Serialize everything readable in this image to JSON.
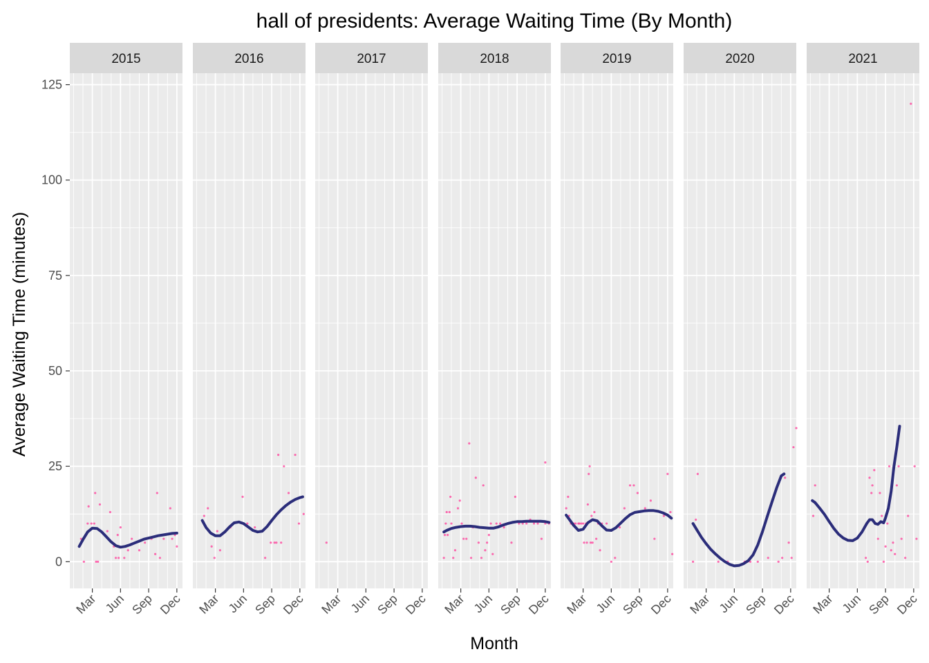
{
  "chart_data": {
    "type": "scatter",
    "title": "hall of presidents: Average Waiting Time (By Month)",
    "xlabel": "Month",
    "ylabel": "Average Waiting Time (minutes)",
    "ylim": [
      -7,
      128
    ],
    "xlim": [
      0.6,
      12.6
    ],
    "y_ticks": [
      0,
      25,
      50,
      75,
      100,
      125
    ],
    "y_tick_labels": [
      "0",
      "25",
      "50",
      "75",
      "100",
      "125"
    ],
    "x_ticks": [
      3,
      6,
      9,
      12
    ],
    "x_tick_labels": [
      "Mar",
      "Jun",
      "Sep",
      "Dec"
    ],
    "grid": true,
    "colors": {
      "panel_bg": "#ebebeb",
      "strip_bg": "#d9d9d9",
      "grid": "#ffffff",
      "points": "#ff3e9a",
      "smooth_line": "#2b2d7a"
    },
    "panels": [
      {
        "label": "2015",
        "points": [
          [
            1.8,
            6
          ],
          [
            2.1,
            0
          ],
          [
            2.5,
            10
          ],
          [
            2.6,
            14.5
          ],
          [
            2.9,
            10
          ],
          [
            3.2,
            10
          ],
          [
            3.3,
            18
          ],
          [
            3.4,
            0
          ],
          [
            3.6,
            0
          ],
          [
            3.8,
            15
          ],
          [
            4.3,
            7
          ],
          [
            4.6,
            8
          ],
          [
            4.9,
            13
          ],
          [
            5.3,
            4
          ],
          [
            5.5,
            1
          ],
          [
            5.7,
            7
          ],
          [
            5.8,
            1
          ],
          [
            6,
            9
          ],
          [
            6.4,
            1
          ],
          [
            6.8,
            3
          ],
          [
            7.2,
            6
          ],
          [
            8,
            3
          ],
          [
            8.6,
            5
          ],
          [
            9.3,
            6
          ],
          [
            9.7,
            2
          ],
          [
            9.9,
            18
          ],
          [
            10.2,
            1
          ],
          [
            10.6,
            6
          ],
          [
            11.3,
            14
          ],
          [
            11.5,
            6
          ],
          [
            11.8,
            7
          ],
          [
            12,
            4
          ]
        ],
        "smooth": [
          [
            1.6,
            4
          ],
          [
            2,
            5.8
          ],
          [
            2.5,
            7.8
          ],
          [
            3,
            8.8
          ],
          [
            3.5,
            8.7
          ],
          [
            4,
            7.8
          ],
          [
            4.5,
            6.5
          ],
          [
            5,
            5.2
          ],
          [
            5.5,
            4.2
          ],
          [
            6,
            3.8
          ],
          [
            6.5,
            4
          ],
          [
            7,
            4.4
          ],
          [
            7.5,
            4.9
          ],
          [
            8,
            5.4
          ],
          [
            8.5,
            5.9
          ],
          [
            9,
            6.2
          ],
          [
            9.5,
            6.5
          ],
          [
            10,
            6.8
          ],
          [
            10.5,
            7
          ],
          [
            11,
            7.2
          ],
          [
            11.5,
            7.4
          ],
          [
            12,
            7.5
          ]
        ]
      },
      {
        "label": "2016",
        "points": [
          [
            1.8,
            12
          ],
          [
            2.2,
            14
          ],
          [
            2.6,
            4
          ],
          [
            2.9,
            1
          ],
          [
            3.2,
            8
          ],
          [
            3.5,
            3
          ],
          [
            4.6,
            9
          ],
          [
            5.9,
            17
          ],
          [
            6.4,
            10
          ],
          [
            7.2,
            9
          ],
          [
            8.3,
            1
          ],
          [
            8.9,
            5
          ],
          [
            9.3,
            5
          ],
          [
            9.5,
            5
          ],
          [
            9.7,
            28
          ],
          [
            10,
            5
          ],
          [
            10.3,
            25
          ],
          [
            10.8,
            18
          ],
          [
            11.5,
            28
          ],
          [
            11.9,
            10
          ],
          [
            12.4,
            12.5
          ]
        ],
        "smooth": [
          [
            1.6,
            10.8
          ],
          [
            2,
            9
          ],
          [
            2.5,
            7.5
          ],
          [
            3,
            6.8
          ],
          [
            3.5,
            6.8
          ],
          [
            4,
            7.8
          ],
          [
            4.5,
            9.1
          ],
          [
            5,
            10.2
          ],
          [
            5.5,
            10.4
          ],
          [
            6,
            10
          ],
          [
            6.5,
            9.1
          ],
          [
            7,
            8.2
          ],
          [
            7.5,
            7.8
          ],
          [
            8,
            8
          ],
          [
            8.5,
            9.2
          ],
          [
            9,
            10.8
          ],
          [
            9.5,
            12.3
          ],
          [
            10,
            13.6
          ],
          [
            10.5,
            14.7
          ],
          [
            11,
            15.6
          ],
          [
            11.5,
            16.3
          ],
          [
            12,
            16.8
          ],
          [
            12.3,
            17
          ]
        ]
      },
      {
        "label": "2017",
        "points": [
          [
            1.8,
            5
          ]
        ],
        "smooth": []
      },
      {
        "label": "2018",
        "points": [
          [
            1.2,
            1
          ],
          [
            1.3,
            7
          ],
          [
            1.4,
            10
          ],
          [
            1.5,
            13
          ],
          [
            1.6,
            7
          ],
          [
            1.8,
            13
          ],
          [
            1.9,
            17
          ],
          [
            2,
            10
          ],
          [
            2.2,
            1
          ],
          [
            2.4,
            3
          ],
          [
            2.7,
            14
          ],
          [
            2.9,
            16
          ],
          [
            3.1,
            10
          ],
          [
            3.3,
            6
          ],
          [
            3.6,
            6
          ],
          [
            3.9,
            31
          ],
          [
            4.1,
            1
          ],
          [
            4.3,
            9
          ],
          [
            4.6,
            22
          ],
          [
            4.9,
            5
          ],
          [
            5.2,
            1
          ],
          [
            5.4,
            20
          ],
          [
            5.6,
            3
          ],
          [
            5.8,
            5
          ],
          [
            6,
            7
          ],
          [
            6.2,
            10
          ],
          [
            6.4,
            2
          ],
          [
            6.8,
            10
          ],
          [
            7.2,
            10
          ],
          [
            7.6,
            9
          ],
          [
            8.4,
            5
          ],
          [
            8.8,
            17
          ],
          [
            9.2,
            10
          ],
          [
            9.6,
            10
          ],
          [
            10,
            10
          ],
          [
            10.4,
            11
          ],
          [
            10.8,
            10
          ],
          [
            11.2,
            10
          ],
          [
            11.6,
            6
          ],
          [
            12,
            26
          ],
          [
            12,
            10
          ],
          [
            12.4,
            10
          ]
        ],
        "smooth": [
          [
            1.2,
            7.8
          ],
          [
            1.5,
            8.2
          ],
          [
            2,
            8.7
          ],
          [
            2.5,
            9
          ],
          [
            3,
            9.2
          ],
          [
            3.5,
            9.3
          ],
          [
            4,
            9.3
          ],
          [
            4.5,
            9.2
          ],
          [
            5,
            9
          ],
          [
            5.5,
            8.9
          ],
          [
            6,
            8.8
          ],
          [
            6.5,
            8.8
          ],
          [
            7,
            9.1
          ],
          [
            7.5,
            9.6
          ],
          [
            8,
            10
          ],
          [
            8.5,
            10.3
          ],
          [
            9,
            10.5
          ],
          [
            9.5,
            10.5
          ],
          [
            10,
            10.6
          ],
          [
            10.5,
            10.6
          ],
          [
            11,
            10.6
          ],
          [
            11.5,
            10.6
          ],
          [
            12,
            10.5
          ],
          [
            12.4,
            10.3
          ]
        ]
      },
      {
        "label": "2019",
        "points": [
          [
            1.2,
            14
          ],
          [
            1.4,
            17
          ],
          [
            1.5,
            12
          ],
          [
            1.7,
            10
          ],
          [
            1.9,
            10
          ],
          [
            2,
            10
          ],
          [
            2.2,
            10
          ],
          [
            2.5,
            10
          ],
          [
            2.6,
            10
          ],
          [
            2.8,
            10
          ],
          [
            3,
            10
          ],
          [
            3.1,
            5
          ],
          [
            3.3,
            10
          ],
          [
            3.4,
            5
          ],
          [
            3.5,
            15
          ],
          [
            3.6,
            23
          ],
          [
            3.7,
            25
          ],
          [
            3.8,
            5
          ],
          [
            3.9,
            12
          ],
          [
            4,
            5
          ],
          [
            4.2,
            13
          ],
          [
            4.4,
            6
          ],
          [
            4.6,
            10
          ],
          [
            4.8,
            3
          ],
          [
            5,
            10
          ],
          [
            5.5,
            10
          ],
          [
            6,
            0
          ],
          [
            6.4,
            1
          ],
          [
            6.9,
            9
          ],
          [
            7.4,
            14
          ],
          [
            8,
            20
          ],
          [
            8.4,
            20
          ],
          [
            8.8,
            18
          ],
          [
            9.6,
            14
          ],
          [
            10.2,
            16
          ],
          [
            10.6,
            6
          ],
          [
            11.2,
            13
          ],
          [
            11.6,
            12
          ],
          [
            12,
            23
          ],
          [
            12.3,
            13
          ],
          [
            12.5,
            2
          ]
        ],
        "smooth": [
          [
            1.2,
            12.2
          ],
          [
            1.5,
            11.2
          ],
          [
            2,
            9.5
          ],
          [
            2.5,
            8.2
          ],
          [
            3,
            8.5
          ],
          [
            3.5,
            10.2
          ],
          [
            4,
            11
          ],
          [
            4.5,
            10.7
          ],
          [
            5,
            9.4
          ],
          [
            5.5,
            8.3
          ],
          [
            6,
            8.2
          ],
          [
            6.5,
            8.9
          ],
          [
            7,
            10.1
          ],
          [
            7.5,
            11.3
          ],
          [
            8,
            12.3
          ],
          [
            8.5,
            12.9
          ],
          [
            9,
            13.1
          ],
          [
            9.5,
            13.3
          ],
          [
            10,
            13.4
          ],
          [
            10.5,
            13.4
          ],
          [
            11,
            13.2
          ],
          [
            11.5,
            12.8
          ],
          [
            12,
            12.2
          ],
          [
            12.4,
            11.4
          ]
        ]
      },
      {
        "label": "2020",
        "points": [
          [
            1.6,
            0
          ],
          [
            1.9,
            11
          ],
          [
            2.1,
            23
          ],
          [
            4.3,
            0
          ],
          [
            5.3,
            0
          ],
          [
            7.1,
            0
          ],
          [
            7.4,
            0
          ],
          [
            7.7,
            0
          ],
          [
            8.5,
            0
          ],
          [
            9.6,
            1
          ],
          [
            10.7,
            0
          ],
          [
            11.1,
            1
          ],
          [
            11.4,
            22
          ],
          [
            11.8,
            5
          ],
          [
            12.1,
            1
          ],
          [
            12.3,
            30
          ],
          [
            12.6,
            35
          ]
        ],
        "smooth": [
          [
            1.6,
            10
          ],
          [
            2,
            8.4
          ],
          [
            2.5,
            6.4
          ],
          [
            3,
            4.7
          ],
          [
            3.5,
            3.2
          ],
          [
            4,
            2
          ],
          [
            4.5,
            0.9
          ],
          [
            5,
            0
          ],
          [
            5.5,
            -0.7
          ],
          [
            6,
            -1.1
          ],
          [
            6.5,
            -1
          ],
          [
            7,
            -0.5
          ],
          [
            7.5,
            0.3
          ],
          [
            8,
            1.8
          ],
          [
            8.5,
            4.4
          ],
          [
            9,
            7.9
          ],
          [
            9.5,
            11.8
          ],
          [
            10,
            15.6
          ],
          [
            10.5,
            19.3
          ],
          [
            11,
            22.5
          ],
          [
            11.3,
            23
          ]
        ]
      },
      {
        "label": "2021",
        "points": [
          [
            1.3,
            12
          ],
          [
            1.5,
            20
          ],
          [
            6.9,
            1
          ],
          [
            7.1,
            0
          ],
          [
            7.3,
            22
          ],
          [
            7.5,
            18
          ],
          [
            7.6,
            20
          ],
          [
            7.8,
            24
          ],
          [
            8,
            10
          ],
          [
            8.2,
            6
          ],
          [
            8.4,
            18
          ],
          [
            8.6,
            12
          ],
          [
            8.8,
            0
          ],
          [
            9,
            4
          ],
          [
            9.2,
            10
          ],
          [
            9.4,
            25
          ],
          [
            9.6,
            3
          ],
          [
            9.8,
            5
          ],
          [
            10,
            2
          ],
          [
            10.2,
            20
          ],
          [
            10.4,
            25
          ],
          [
            10.7,
            6
          ],
          [
            11.1,
            1
          ],
          [
            11.4,
            12
          ],
          [
            11.7,
            120
          ],
          [
            12.1,
            25
          ],
          [
            12.3,
            6
          ]
        ],
        "smooth": [
          [
            1.2,
            16
          ],
          [
            1.5,
            15.5
          ],
          [
            2,
            14
          ],
          [
            2.5,
            12.4
          ],
          [
            3,
            10.5
          ],
          [
            3.5,
            8.7
          ],
          [
            4,
            7.2
          ],
          [
            4.5,
            6.2
          ],
          [
            5,
            5.6
          ],
          [
            5.5,
            5.5
          ],
          [
            6,
            6.2
          ],
          [
            6.5,
            7.8
          ],
          [
            7,
            10
          ],
          [
            7.3,
            11
          ],
          [
            7.6,
            11
          ],
          [
            7.9,
            10
          ],
          [
            8.2,
            9.8
          ],
          [
            8.5,
            10.5
          ],
          [
            8.8,
            10.2
          ],
          [
            9,
            11.5
          ],
          [
            9.3,
            14
          ],
          [
            9.6,
            18.5
          ],
          [
            9.9,
            25
          ],
          [
            10.2,
            30
          ],
          [
            10.5,
            35.5
          ]
        ]
      }
    ]
  }
}
